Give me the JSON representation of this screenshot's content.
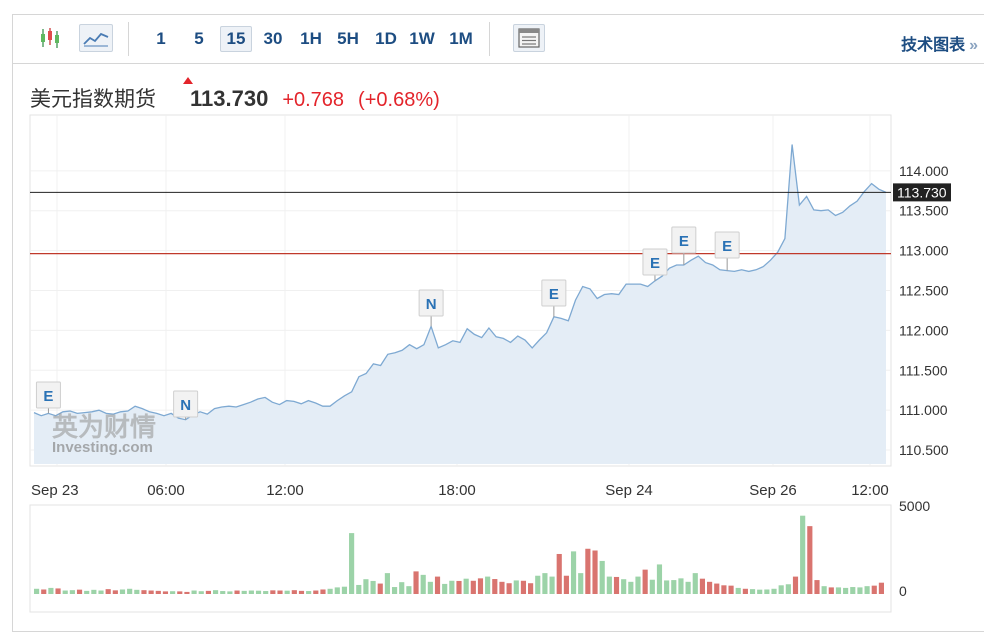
{
  "toolbar": {
    "chart_type_icons": [
      "candlestick-icon",
      "line-chart-icon"
    ],
    "intervals": [
      "1",
      "5",
      "15",
      "30",
      "1H",
      "5H",
      "1D",
      "1W",
      "1M"
    ],
    "active_interval": "15",
    "table_icon": "table-icon",
    "tech_chart_label": "技术图表",
    "tech_chart_arrow": "»"
  },
  "quote": {
    "name": "美元指数期货",
    "price": "113.730",
    "change": "+0.768",
    "change_pct": "(+0.68%)",
    "up_color": "#e3242b"
  },
  "watermark": {
    "cn": "英为财情",
    "en": "Investing.com"
  },
  "chart_data": {
    "type": "area",
    "x_tick_labels": [
      "Sep 23",
      "06:00",
      "12:00",
      "18:00",
      "Sep 24",
      "Sep 26",
      "12:00"
    ],
    "y_ticks": [
      110.5,
      111.0,
      111.5,
      112.0,
      112.5,
      113.0,
      113.5,
      114.0
    ],
    "y_tick_labels": [
      "110.500",
      "111.000",
      "111.500",
      "112.000",
      "112.500",
      "113.000",
      "113.500",
      "114.000"
    ],
    "ylim": [
      110.3,
      114.7
    ],
    "last_price": 113.73,
    "last_price_label": "113.730",
    "reference_level": 112.962,
    "line_color": "#7ea9d2",
    "fill_color": "#e4edf6",
    "series": [
      {
        "values": [
          110.97,
          110.93,
          110.96,
          110.93,
          110.98,
          110.99,
          110.96,
          110.97,
          110.98,
          111.0,
          110.96,
          110.95,
          110.98,
          110.99,
          111.05,
          111.02,
          110.98,
          110.96,
          110.93,
          110.96,
          110.9,
          110.88,
          110.94,
          110.98,
          110.95,
          111.02,
          111.04,
          111.05,
          111.04,
          111.07,
          111.1,
          111.14,
          111.16,
          111.1,
          111.07,
          111.12,
          111.11,
          111.08,
          111.12,
          111.09,
          111.05,
          111.05,
          111.12,
          111.18,
          111.23,
          111.42,
          111.46,
          111.58,
          111.56,
          111.7,
          111.72,
          111.75,
          111.82,
          111.77,
          111.82,
          112.05,
          111.78,
          111.82,
          111.87,
          111.85,
          112.02,
          111.95,
          111.91,
          112.03,
          111.92,
          111.9,
          111.85,
          111.93,
          111.88,
          111.78,
          111.88,
          111.97,
          112.17,
          112.15,
          112.12,
          112.38,
          112.55,
          112.52,
          112.4,
          112.45,
          112.46,
          112.45,
          112.58,
          112.58,
          112.58,
          112.55,
          112.62,
          112.68,
          112.78,
          112.82,
          112.82,
          112.88,
          112.93,
          112.85,
          112.82,
          112.76,
          112.75,
          112.74,
          112.76,
          112.74,
          112.76,
          112.8,
          112.88,
          112.98,
          113.15,
          114.33,
          113.57,
          113.68,
          113.51,
          113.5,
          113.51,
          113.44,
          113.48,
          113.56,
          113.62,
          113.74,
          113.84,
          113.77,
          113.73
        ]
      }
    ],
    "event_flags": [
      {
        "label": "E",
        "index": 2
      },
      {
        "label": "N",
        "index": 21
      },
      {
        "label": "N",
        "index": 55
      },
      {
        "label": "E",
        "index": 72
      },
      {
        "label": "E",
        "index": 86
      },
      {
        "label": "E",
        "index": 90
      },
      {
        "label": "E",
        "index": 96
      }
    ],
    "volume": {
      "ylim": [
        0,
        5000
      ],
      "y_tick_labels": [
        "5000",
        "0"
      ],
      "up_color": "#9cd3a8",
      "down_color": "#d9746f",
      "values": [
        300,
        260,
        350,
        320,
        200,
        220,
        250,
        180,
        240,
        200,
        280,
        210,
        260,
        300,
        240,
        220,
        200,
        180,
        150,
        160,
        150,
        120,
        200,
        160,
        180,
        220,
        170,
        150,
        200,
        180,
        200,
        190,
        170,
        210,
        200,
        190,
        220,
        180,
        170,
        200,
        260,
        300,
        380,
        420,
        3500,
        520,
        850,
        750,
        600,
        1200,
        400,
        680,
        450,
        1300,
        1100,
        700,
        1000,
        580,
        760,
        750,
        880,
        760,
        900,
        1000,
        860,
        700,
        620,
        780,
        760,
        620,
        1050,
        1200,
        1000,
        2300,
        1050,
        2450,
        1200,
        2600,
        2500,
        1900,
        1000,
        980,
        850,
        700,
        1000,
        1400,
        820,
        1700,
        780,
        800,
        900,
        700,
        1200,
        880,
        700,
        600,
        500,
        480,
        350,
        300,
        280,
        250,
        260,
        300,
        500,
        560,
        1000,
        4500,
        3900,
        800,
        450,
        380,
        380,
        350,
        400,
        380,
        450,
        480,
        650
      ]
    }
  }
}
